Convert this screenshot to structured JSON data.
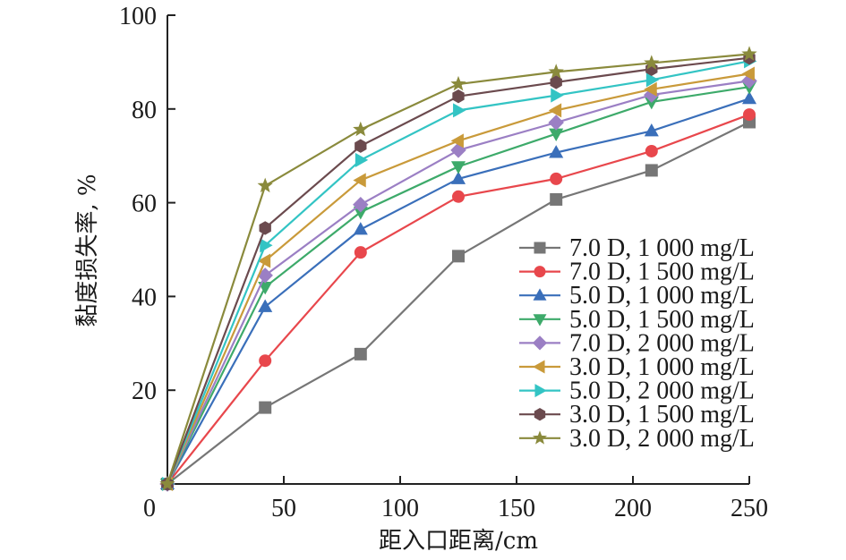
{
  "chart_data": {
    "type": "line",
    "title": "",
    "xlabel": "距入口距离/cm",
    "ylabel": "黏度损失率, %",
    "xlim": [
      0,
      250
    ],
    "ylim": [
      0,
      100
    ],
    "xticks": [
      0,
      50,
      100,
      150,
      200,
      250
    ],
    "yticks": [
      20,
      40,
      60,
      80,
      100
    ],
    "y_zero_label": "0",
    "grid": false,
    "legend_position": "center-right",
    "x": [
      0,
      42,
      83,
      125,
      167,
      208,
      250
    ],
    "series": [
      {
        "name": "7.0 D, 1 000 mg/L",
        "color": "#767676",
        "marker": "square",
        "values": [
          0,
          16.3,
          27.7,
          48.6,
          60.7,
          66.9,
          77.2
        ]
      },
      {
        "name": "7.0 D, 1 500 mg/L",
        "color": "#e8474c",
        "marker": "circle",
        "values": [
          0,
          26.3,
          49.4,
          61.3,
          65.1,
          71.0,
          78.8
        ]
      },
      {
        "name": "5.0 D, 1 000 mg/L",
        "color": "#3a6fba",
        "marker": "triangle-up",
        "values": [
          0,
          37.8,
          54.3,
          65.1,
          70.7,
          75.3,
          82.2
        ]
      },
      {
        "name": "5.0 D, 1 500 mg/L",
        "color": "#3daa6a",
        "marker": "triangle-down",
        "values": [
          0,
          42.0,
          58.0,
          67.7,
          74.7,
          81.5,
          84.7
        ]
      },
      {
        "name": "7.0 D, 2 000 mg/L",
        "color": "#9b7fc4",
        "marker": "diamond",
        "values": [
          0,
          44.5,
          59.6,
          71.2,
          77.1,
          83.0,
          86.0
        ]
      },
      {
        "name": "3.0 D, 1 000 mg/L",
        "color": "#c99a3a",
        "marker": "triangle-left",
        "values": [
          0,
          47.6,
          64.8,
          73.2,
          79.7,
          84.2,
          87.5
        ]
      },
      {
        "name": "5.0 D, 2 000 mg/L",
        "color": "#33c4c4",
        "marker": "triangle-right",
        "values": [
          0,
          50.9,
          69.1,
          79.7,
          82.9,
          86.2,
          90.2
        ]
      },
      {
        "name": "3.0 D, 1 500 mg/L",
        "color": "#6b4a4e",
        "marker": "hexagon",
        "values": [
          0,
          54.6,
          72.1,
          82.7,
          85.7,
          88.5,
          90.9
        ]
      },
      {
        "name": "3.0 D, 2 000 mg/L",
        "color": "#8a8a3c",
        "marker": "star",
        "values": [
          0,
          63.6,
          75.6,
          85.3,
          87.9,
          89.8,
          91.7
        ]
      }
    ]
  }
}
